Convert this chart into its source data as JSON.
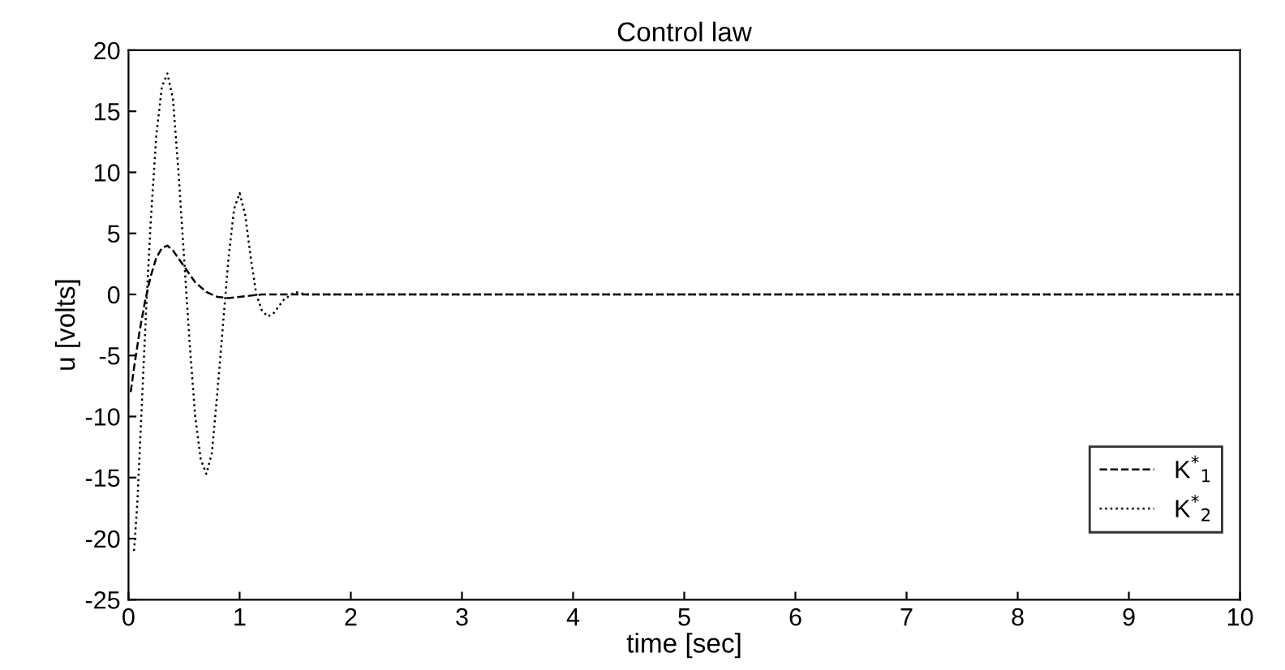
{
  "chart_data": {
    "type": "line",
    "title": "Control law",
    "xlabel": "time [sec]",
    "ylabel": "u [volts]",
    "xlim": [
      0,
      10
    ],
    "ylim": [
      -25,
      20
    ],
    "xticks": [
      0,
      1,
      2,
      3,
      4,
      5,
      6,
      7,
      8,
      9,
      10
    ],
    "yticks": [
      -25,
      -20,
      -15,
      -10,
      -5,
      0,
      5,
      10,
      15,
      20
    ],
    "grid": false,
    "legend": "bottom right",
    "series": [
      {
        "name": "K$^{*}$$_{1}$",
        "color": "#000000",
        "line_style": "dashed",
        "x": [
          0.02,
          0.05,
          0.1,
          0.15,
          0.2,
          0.25,
          0.3,
          0.35,
          0.4,
          0.5,
          0.6,
          0.7,
          0.8,
          0.9,
          1.0,
          1.2,
          1.5,
          2,
          3,
          4,
          5,
          6,
          7,
          8,
          9,
          10
        ],
        "values": [
          -8,
          -6,
          -3,
          -0.5,
          1.5,
          3,
          3.8,
          4,
          3.6,
          2.3,
          1,
          0.2,
          -0.2,
          -0.3,
          -0.2,
          0,
          0,
          0,
          0,
          0,
          0,
          0,
          0,
          0,
          0,
          0
        ]
      },
      {
        "name": "K$^{*}$$_{2}$",
        "color": "#000000",
        "line_style": "dotted",
        "x": [
          0.05,
          0.08,
          0.12,
          0.16,
          0.2,
          0.25,
          0.3,
          0.35,
          0.4,
          0.45,
          0.5,
          0.55,
          0.6,
          0.65,
          0.7,
          0.75,
          0.8,
          0.85,
          0.9,
          0.95,
          1.0,
          1.05,
          1.1,
          1.15,
          1.2,
          1.25,
          1.3,
          1.35,
          1.4,
          1.5,
          1.6,
          2,
          3,
          4,
          5,
          6,
          7,
          8,
          9,
          10
        ],
        "values": [
          -21,
          -17,
          -9,
          -1,
          6,
          13,
          17,
          18.1,
          16,
          10,
          3,
          -4,
          -10,
          -13.5,
          -14.7,
          -13,
          -8,
          -2.5,
          3,
          7,
          8.3,
          6.5,
          3,
          0,
          -1.3,
          -1.8,
          -1.6,
          -1,
          -0.4,
          0.2,
          0,
          0,
          0,
          0,
          0,
          0,
          0,
          0,
          0,
          0
        ]
      }
    ]
  }
}
